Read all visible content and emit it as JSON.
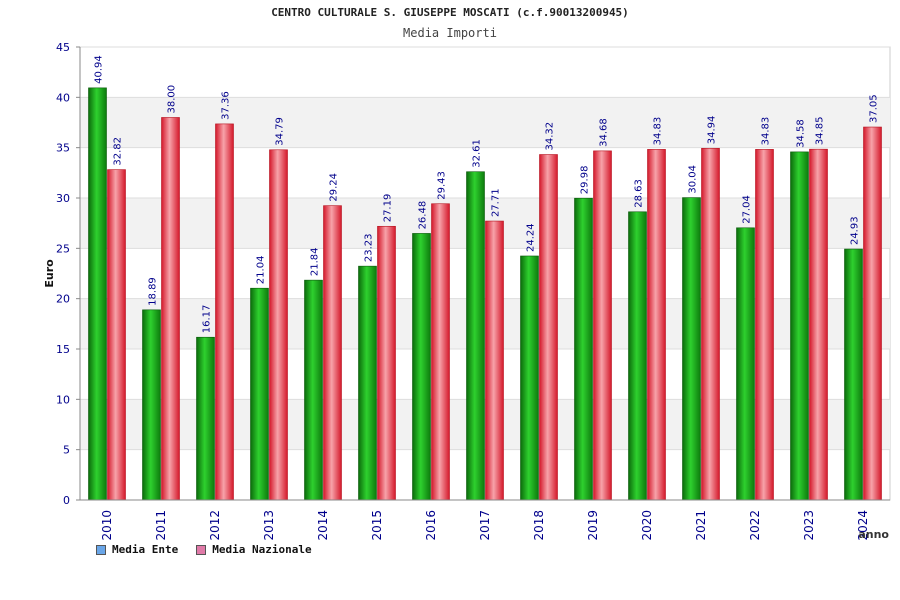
{
  "header": {
    "title": "CENTRO CULTURALE S. GIUSEPPE MOSCATI (c.f.90013200945)",
    "subtitle": "Media Importi"
  },
  "legend": {
    "ente_label": "Media Ente",
    "nazionale_label": "Media Nazionale",
    "ente_swatch_color": "#6aa6e8",
    "nazionale_swatch_color": "#e07aa8"
  },
  "chart_data": {
    "type": "bar",
    "title": "CENTRO CULTURALE S. GIUSEPPE MOSCATI (c.f.90013200945)",
    "subtitle": "Media Importi",
    "xlabel": "anno",
    "ylabel": "Euro",
    "ylim": [
      0,
      45
    ],
    "yticks": [
      0,
      5,
      10,
      15,
      20,
      25,
      30,
      35,
      40,
      45
    ],
    "grid": "horizontal, alternating light gray bands",
    "legend_position": "bottom-left",
    "categories": [
      "2010",
      "2011",
      "2012",
      "2013",
      "2014",
      "2015",
      "2016",
      "2017",
      "2018",
      "2019",
      "2020",
      "2021",
      "2022",
      "2023",
      "2024"
    ],
    "series": [
      {
        "name": "Media Ente",
        "color": "#1fa81f",
        "values": [
          40.94,
          18.89,
          16.17,
          21.04,
          21.84,
          23.23,
          26.48,
          32.61,
          24.24,
          29.98,
          28.63,
          30.04,
          27.04,
          34.58,
          24.93
        ],
        "labels": [
          "40.94",
          "18.89",
          "16.17",
          "21.04",
          "21.84",
          "23.23",
          "26.48",
          "32.61",
          "24.24",
          "29.98",
          "28.63",
          "30.04",
          "27.04",
          "34.58",
          "24.93"
        ]
      },
      {
        "name": "Media Nazionale",
        "color": "#e8303a",
        "values": [
          32.82,
          38.0,
          37.36,
          34.79,
          29.24,
          27.19,
          29.43,
          27.71,
          34.32,
          34.68,
          34.83,
          34.94,
          34.83,
          34.85,
          37.05
        ],
        "labels": [
          "32.82",
          "38.00",
          "37.36",
          "34.79",
          "29.24",
          "27.19",
          "29.43",
          "27.71",
          "34.32",
          "34.68",
          "34.83",
          "34.94",
          "34.83",
          "34.85",
          "37.05"
        ]
      }
    ]
  }
}
